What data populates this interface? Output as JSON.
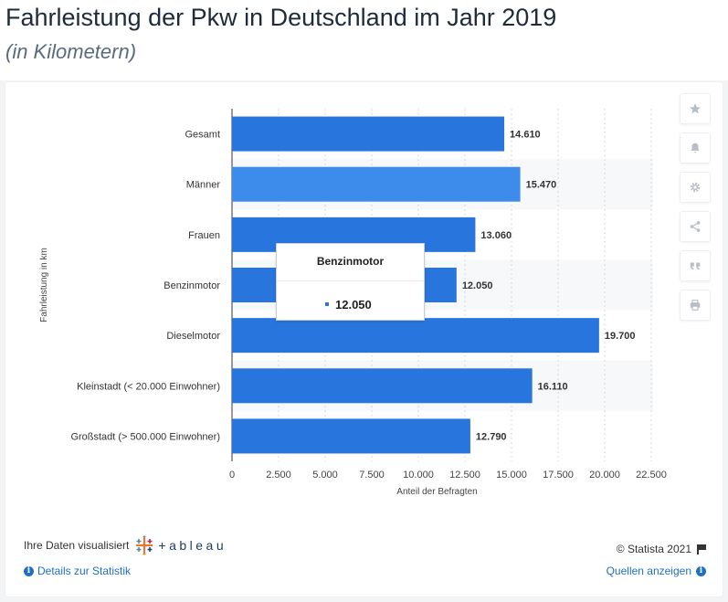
{
  "header": {
    "title": "Fahrleistung der Pkw in Deutschland im Jahr 2019",
    "subtitle": "(in Kilometern)"
  },
  "chart_data": {
    "type": "bar",
    "orientation": "horizontal",
    "categories": [
      "Gesamt",
      "Männer",
      "Frauen",
      "Benzinmotor",
      "Dieselmotor",
      "Kleinstadt (< 20.000 Einwohner)",
      "Großstadt (> 500.000 Einwohner)"
    ],
    "values": [
      14610,
      15470,
      13060,
      12050,
      19700,
      16110,
      12790
    ],
    "value_labels": [
      "14.610",
      "15.470",
      "13.060",
      "12.050",
      "19.700",
      "16.110",
      "12.790"
    ],
    "highlighted_category": "Männer",
    "xlabel": "Anteil der Befragten",
    "ylabel": "Fahrleistung in km",
    "xlim": [
      0,
      22500
    ],
    "xticks": [
      0,
      2500,
      5000,
      7500,
      10000,
      12500,
      15000,
      17500,
      20000,
      22500
    ],
    "xtick_labels": [
      "0",
      "2.500",
      "5.000",
      "7.500",
      "10.000",
      "12.500",
      "15.000",
      "17.500",
      "20.000",
      "22.500"
    ],
    "grid": true,
    "legend": "none",
    "colors": {
      "bar": "#2876dd",
      "bar_highlight": "#3d8bea",
      "band": "#f7f8f9",
      "grid": "#d4d9de"
    }
  },
  "tooltip": {
    "title": "Benzinmotor",
    "value": "12.050"
  },
  "toolbar": {
    "icons": [
      "star-icon",
      "bell-icon",
      "gear-icon",
      "share-icon",
      "quote-icon",
      "print-icon"
    ]
  },
  "footer": {
    "visualized_by": "Ihre Daten visualisiert",
    "tableau_word": "+ableau",
    "copyright": "© Statista 2021",
    "details_link": "Details zur Statistik",
    "sources_link": "Quellen anzeigen"
  }
}
